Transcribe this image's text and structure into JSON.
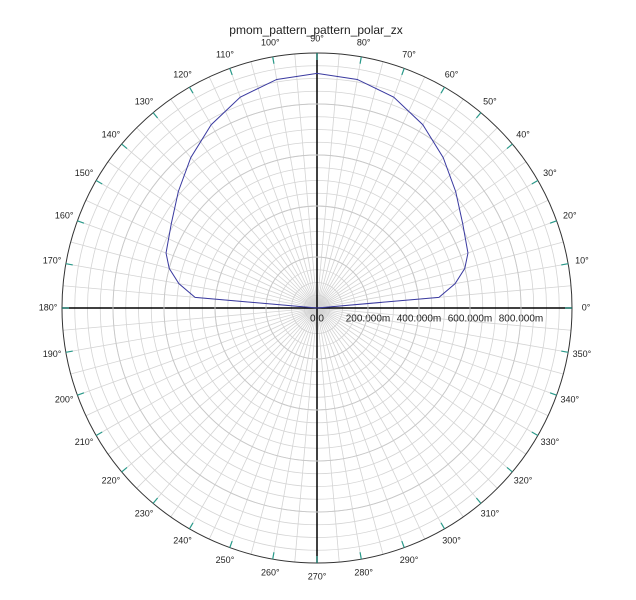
{
  "chart_data": {
    "type": "polar",
    "title": "pmom_pattern_pattern_polar_zx",
    "series": [
      {
        "color": "#3a3aa0",
        "x": [
          0,
          5,
          10,
          15,
          20,
          30,
          40,
          50,
          60,
          70,
          80,
          90,
          100,
          110,
          120,
          130,
          140,
          150,
          160,
          165,
          170,
          175,
          180
        ],
        "values": [
          0,
          0.48,
          0.55,
          0.6,
          0.63,
          0.66,
          0.71,
          0.77,
          0.83,
          0.88,
          0.91,
          0.92,
          0.91,
          0.88,
          0.83,
          0.77,
          0.71,
          0.66,
          0.63,
          0.6,
          0.55,
          0.48,
          0
        ]
      }
    ],
    "rlim": [
      0,
      1
    ],
    "rticks": [
      {
        "value": 0,
        "label": "0.0"
      },
      {
        "value": 0.2,
        "label": "200.000m"
      },
      {
        "value": 0.4,
        "label": "400.000m"
      },
      {
        "value": 0.6,
        "label": "600.000m"
      },
      {
        "value": 0.8,
        "label": "800.000m"
      }
    ],
    "thetaticks": [
      {
        "value": 0,
        "label": "0°"
      },
      {
        "value": 10,
        "label": "10°"
      },
      {
        "value": 20,
        "label": "20°"
      },
      {
        "value": 30,
        "label": "30°"
      },
      {
        "value": 40,
        "label": "40°"
      },
      {
        "value": 50,
        "label": "50°"
      },
      {
        "value": 60,
        "label": "60°"
      },
      {
        "value": 70,
        "label": "70°"
      },
      {
        "value": 80,
        "label": "80°"
      },
      {
        "value": 90,
        "label": "90°"
      },
      {
        "value": 100,
        "label": "100°"
      },
      {
        "value": 110,
        "label": "110°"
      },
      {
        "value": 120,
        "label": "120°"
      },
      {
        "value": 130,
        "label": "130°"
      },
      {
        "value": 140,
        "label": "140°"
      },
      {
        "value": 150,
        "label": "150°"
      },
      {
        "value": 160,
        "label": "160°"
      },
      {
        "value": 170,
        "label": "170°"
      },
      {
        "value": 180,
        "label": "180°"
      },
      {
        "value": 190,
        "label": "190°"
      },
      {
        "value": 200,
        "label": "200°"
      },
      {
        "value": 210,
        "label": "210°"
      },
      {
        "value": 220,
        "label": "220°"
      },
      {
        "value": 230,
        "label": "230°"
      },
      {
        "value": 240,
        "label": "240°"
      },
      {
        "value": 250,
        "label": "250°"
      },
      {
        "value": 260,
        "label": "260°"
      },
      {
        "value": 270,
        "label": "270°"
      },
      {
        "value": 280,
        "label": "280°"
      },
      {
        "value": 290,
        "label": "290°"
      },
      {
        "value": 300,
        "label": "300°"
      },
      {
        "value": 310,
        "label": "310°"
      },
      {
        "value": 320,
        "label": "320°"
      },
      {
        "value": 330,
        "label": "330°"
      },
      {
        "value": 340,
        "label": "340°"
      },
      {
        "value": 350,
        "label": "350°"
      }
    ],
    "grid": true
  }
}
